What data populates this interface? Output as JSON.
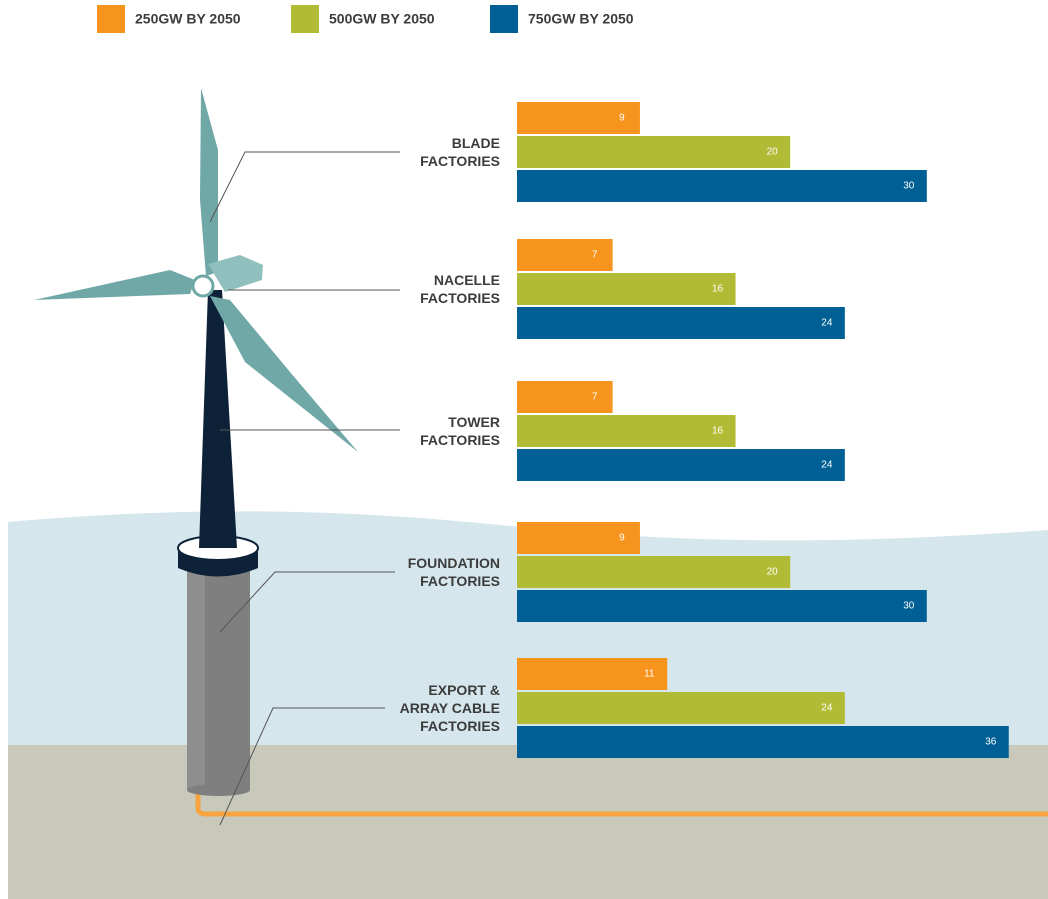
{
  "chart_data": {
    "type": "bar",
    "categories": [
      "BLADE\nFACTORIES",
      "NACELLE\nFACTORIES",
      "TOWER\nFACTORIES",
      "FOUNDATION\nFACTORIES",
      "EXPORT &\nARRAY CABLE\nFACTORIES"
    ],
    "series": [
      {
        "name": "250GW BY 2050",
        "color": "#f7941d",
        "values": [
          9,
          7,
          7,
          9,
          11
        ]
      },
      {
        "name": "500GW BY 2050",
        "color": "#b2bb35",
        "values": [
          20,
          16,
          16,
          20,
          24
        ]
      },
      {
        "name": "750GW BY 2050",
        "color": "#005f94",
        "values": [
          30,
          24,
          24,
          30,
          36
        ]
      }
    ]
  }
}
